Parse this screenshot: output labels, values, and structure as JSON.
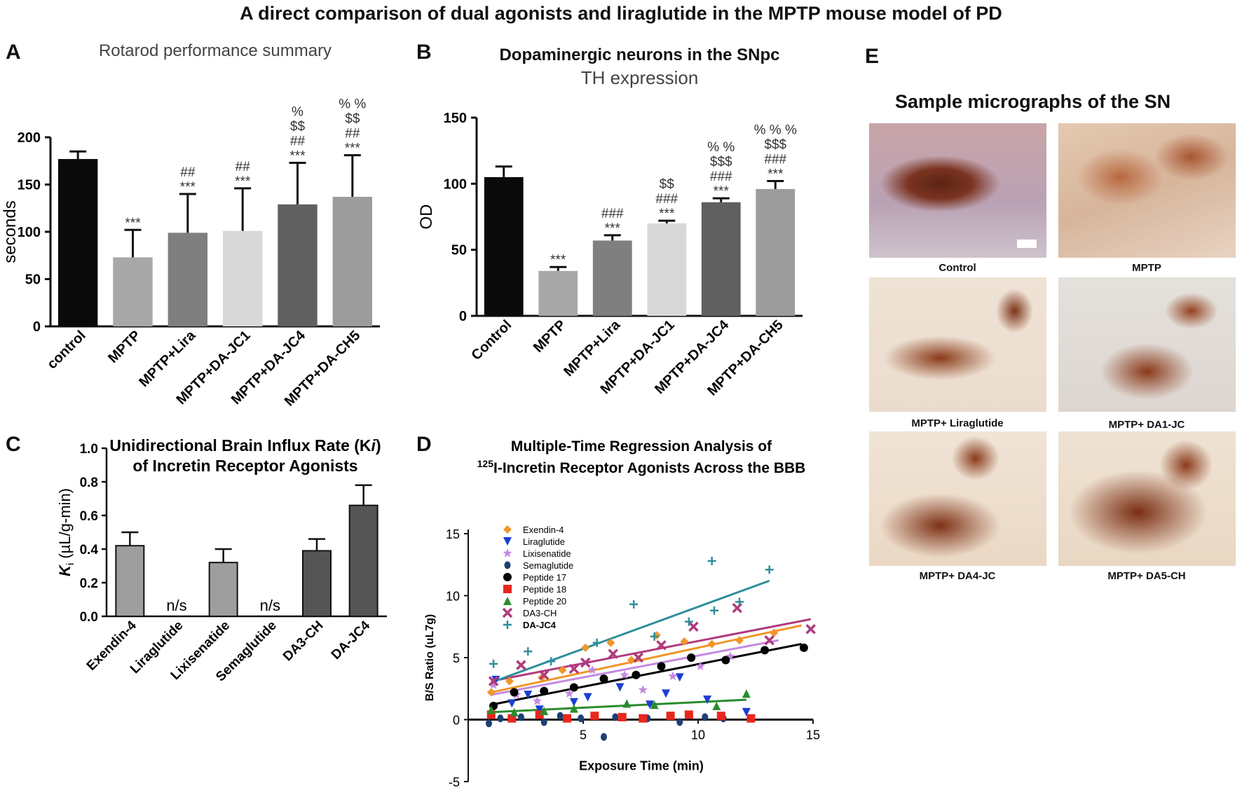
{
  "title": "A direct comparison of dual agonists and liraglutide in the MPTP mouse model of PD",
  "panel_letters": [
    "A",
    "B",
    "C",
    "D",
    "E"
  ],
  "chart_data": [
    {
      "panel": "A",
      "type": "bar",
      "title": "Rotarod performance summary",
      "ylabel": "seconds",
      "ylim": [
        0,
        200
      ],
      "yticks": [
        0,
        50,
        100,
        150,
        200
      ],
      "categories": [
        "control",
        "MPTP",
        "MPTP+Lira",
        "MPTP+DA-JC1",
        "MPTP+DA-JC4",
        "MPTP+DA-CH5"
      ],
      "values": [
        177,
        73,
        99,
        101,
        129,
        137
      ],
      "errors": [
        8,
        29,
        41,
        45,
        44,
        44
      ],
      "colors": [
        "#0a0a0a",
        "#a8a8a8",
        "#7f7f7f",
        "#d8d8d8",
        "#606060",
        "#9c9c9c"
      ],
      "annotations": [
        [],
        [
          "***"
        ],
        [
          "##",
          "***"
        ],
        [
          "##",
          "***"
        ],
        [
          "%",
          "$$",
          "##",
          "***"
        ],
        [
          "% %",
          "$$",
          "##",
          "***"
        ]
      ]
    },
    {
      "panel": "B",
      "type": "bar",
      "title": "Dopaminergic neurons in the SNpc",
      "subtitle": "TH expression",
      "ylabel": "OD",
      "ylim": [
        0,
        150
      ],
      "yticks": [
        0,
        50,
        100,
        150
      ],
      "categories": [
        "Control",
        "MPTP",
        "MPTP+Lira",
        "MPTP+DA-JC1",
        "MPTP+DA-JC4",
        "MPTP+DA-CH5"
      ],
      "values": [
        105,
        34,
        57,
        70,
        86,
        96
      ],
      "errors": [
        8,
        3,
        4,
        2,
        3,
        6
      ],
      "colors": [
        "#0a0a0a",
        "#a8a8a8",
        "#7f7f7f",
        "#d8d8d8",
        "#606060",
        "#9c9c9c"
      ],
      "annotations": [
        [],
        [
          "***"
        ],
        [
          "###",
          "***"
        ],
        [
          "$$",
          "###",
          "***"
        ],
        [
          "% %",
          "$$$",
          "###",
          "***"
        ],
        [
          "% % %",
          "$$$",
          "###",
          "***"
        ]
      ]
    },
    {
      "panel": "C",
      "type": "bar",
      "title_line1": "Unidirectional Brain Influx Rate (K",
      "title_italic": "i",
      "title_line1_end": ")",
      "title_line2": "of Incretin Receptor Agonists",
      "ylabel_main": "K",
      "ylabel_sub": "i",
      "ylabel_unit": " (µL/g-min)",
      "ylim": [
        0,
        1.0
      ],
      "yticks": [
        "0.0",
        "0.2",
        "0.4",
        "0.6",
        "0.8",
        "1.0"
      ],
      "categories": [
        "Exendin-4",
        "Liraglutide",
        "Lixisenatide",
        "Semaglutide",
        "DA3-CH",
        "DA-JC4"
      ],
      "values": [
        0.42,
        null,
        0.32,
        null,
        0.39,
        0.66
      ],
      "errors": [
        0.08,
        null,
        0.08,
        null,
        0.07,
        0.12
      ],
      "na_label": "n/s",
      "colors": [
        "#9e9e9e",
        "#9e9e9e",
        "#9e9e9e",
        "#9e9e9e",
        "#555555",
        "#555555"
      ]
    },
    {
      "panel": "D",
      "type": "scatter",
      "title_line1": "Multiple-Time Regression Analysis of",
      "title_sup": "125",
      "title_line2": "I-Incretin Receptor Agonists Across the BBB",
      "xlabel": "Exposure Time (min)",
      "ylabel": "B/S Ratio (uL7g)",
      "xlim": [
        0,
        15
      ],
      "ylim": [
        -5,
        15
      ],
      "xticks": [
        "5",
        "10",
        "15"
      ],
      "yticks": [
        "-5",
        "0",
        "5",
        "10",
        "15"
      ],
      "series": [
        {
          "name": "Exendin-4",
          "color": "#f0962a",
          "marker": "diamond",
          "points": [
            [
              1,
              2.2
            ],
            [
              1.8,
              3.1
            ],
            [
              3.2,
              3.4
            ],
            [
              4.1,
              4.0
            ],
            [
              5.1,
              5.8
            ],
            [
              6.2,
              6.2
            ],
            [
              7.1,
              4.8
            ],
            [
              8.2,
              6.8
            ],
            [
              9.4,
              6.3
            ],
            [
              10.6,
              6.1
            ],
            [
              11.8,
              6.4
            ],
            [
              13.3,
              7.0
            ]
          ],
          "fit": [
            [
              1,
              2.2
            ],
            [
              14.5,
              7.6
            ]
          ]
        },
        {
          "name": "Liraglutide",
          "color": "#1a3fd0",
          "marker": "tri-down",
          "points": [
            [
              1.2,
              3.2
            ],
            [
              1.9,
              1.3
            ],
            [
              2.6,
              2.0
            ],
            [
              3.1,
              0.8
            ],
            [
              4.6,
              1.4
            ],
            [
              5.2,
              1.8
            ],
            [
              6.6,
              2.6
            ],
            [
              7.9,
              1.2
            ],
            [
              8.6,
              2.1
            ],
            [
              9.2,
              3.4
            ],
            [
              10.4,
              1.6
            ],
            [
              12.1,
              0.6
            ]
          ],
          "fit": null
        },
        {
          "name": "Lixisenatide",
          "color": "#c58ae0",
          "marker": "star",
          "points": [
            [
              1.1,
              2.8
            ],
            [
              2.1,
              2.0
            ],
            [
              3.0,
              1.5
            ],
            [
              4.4,
              2.1
            ],
            [
              5.4,
              4.0
            ],
            [
              6.8,
              3.6
            ],
            [
              7.6,
              2.4
            ],
            [
              8.9,
              3.5
            ],
            [
              10.1,
              4.3
            ],
            [
              11.4,
              5.1
            ]
          ],
          "fit": [
            [
              1,
              2.0
            ],
            [
              13.5,
              6.4
            ]
          ]
        },
        {
          "name": "Semaglutide",
          "color": "#1d3f72",
          "marker": "circle-dark",
          "points": [
            [
              0.9,
              -0.3
            ],
            [
              1.4,
              0.1
            ],
            [
              2.3,
              0.2
            ],
            [
              3.3,
              -0.2
            ],
            [
              4.0,
              0.3
            ],
            [
              4.9,
              0.1
            ],
            [
              5.9,
              -1.4
            ],
            [
              6.4,
              0.2
            ],
            [
              7.8,
              0.1
            ],
            [
              9.2,
              -0.2
            ],
            [
              10.3,
              0.2
            ],
            [
              11.1,
              0.1
            ]
          ],
          "fit": null
        },
        {
          "name": "Peptide 17",
          "color": "#000000",
          "marker": "circle",
          "points": [
            [
              1.1,
              1.1
            ],
            [
              2.0,
              2.2
            ],
            [
              3.3,
              2.3
            ],
            [
              4.6,
              2.6
            ],
            [
              5.9,
              3.3
            ],
            [
              7.3,
              3.6
            ],
            [
              8.4,
              4.3
            ],
            [
              9.7,
              5.0
            ],
            [
              11.2,
              4.8
            ],
            [
              12.9,
              5.6
            ],
            [
              14.6,
              5.8
            ]
          ],
          "fit": [
            [
              1,
              1.2
            ],
            [
              14.5,
              6.1
            ]
          ]
        },
        {
          "name": "Peptide 18",
          "color": "#e8271e",
          "marker": "square",
          "points": [
            [
              1.0,
              0.4
            ],
            [
              1.9,
              0.1
            ],
            [
              3.1,
              0.4
            ],
            [
              4.3,
              0.1
            ],
            [
              5.5,
              0.3
            ],
            [
              6.7,
              0.2
            ],
            [
              7.6,
              0.1
            ],
            [
              8.8,
              0.3
            ],
            [
              9.6,
              0.4
            ],
            [
              11.0,
              0.3
            ],
            [
              12.3,
              0.1
            ]
          ],
          "fit": null
        },
        {
          "name": "Peptide 20",
          "color": "#2a8c2c",
          "marker": "triangle",
          "points": [
            [
              1.0,
              0.8
            ],
            [
              2.0,
              0.6
            ],
            [
              3.3,
              0.7
            ],
            [
              4.6,
              0.9
            ],
            [
              6.9,
              1.3
            ],
            [
              8.1,
              1.2
            ],
            [
              10.8,
              1.1
            ],
            [
              12.1,
              2.1
            ]
          ],
          "fit": [
            [
              1,
              0.6
            ],
            [
              12.1,
              1.6
            ]
          ]
        },
        {
          "name": "DA3-CH",
          "color": "#b03a7d",
          "marker": "x",
          "points": [
            [
              1.1,
              3.1
            ],
            [
              2.3,
              4.4
            ],
            [
              3.3,
              3.6
            ],
            [
              4.6,
              4.1
            ],
            [
              5.1,
              4.6
            ],
            [
              6.3,
              5.3
            ],
            [
              7.4,
              5.0
            ],
            [
              8.4,
              6.0
            ],
            [
              9.8,
              7.5
            ],
            [
              11.7,
              9.0
            ],
            [
              13.1,
              6.4
            ],
            [
              14.9,
              7.3
            ]
          ],
          "fit": [
            [
              1,
              3.1
            ],
            [
              14.9,
              8.1
            ]
          ]
        },
        {
          "name": "DA-JC4",
          "color": "#2f8f9c",
          "marker": "plus",
          "points": [
            [
              1.1,
              4.5
            ],
            [
              2.6,
              5.5
            ],
            [
              3.6,
              4.7
            ],
            [
              5.6,
              6.2
            ],
            [
              7.2,
              9.3
            ],
            [
              8.1,
              6.7
            ],
            [
              9.6,
              7.9
            ],
            [
              10.6,
              12.8
            ],
            [
              11.8,
              9.5
            ],
            [
              13.1,
              12.1
            ],
            [
              10.7,
              8.8
            ]
          ],
          "fit": [
            [
              1,
              3.0
            ],
            [
              13.1,
              11.2
            ]
          ]
        }
      ]
    }
  ],
  "micrographs": {
    "title": "Sample micrographs of the SN",
    "captions": [
      "Control",
      "MPTP",
      "MPTP+ Liraglutide",
      "MPTP+ DA1-JC",
      "MPTP+ DA4-JC",
      "MPTP+ DA5-CH"
    ]
  }
}
